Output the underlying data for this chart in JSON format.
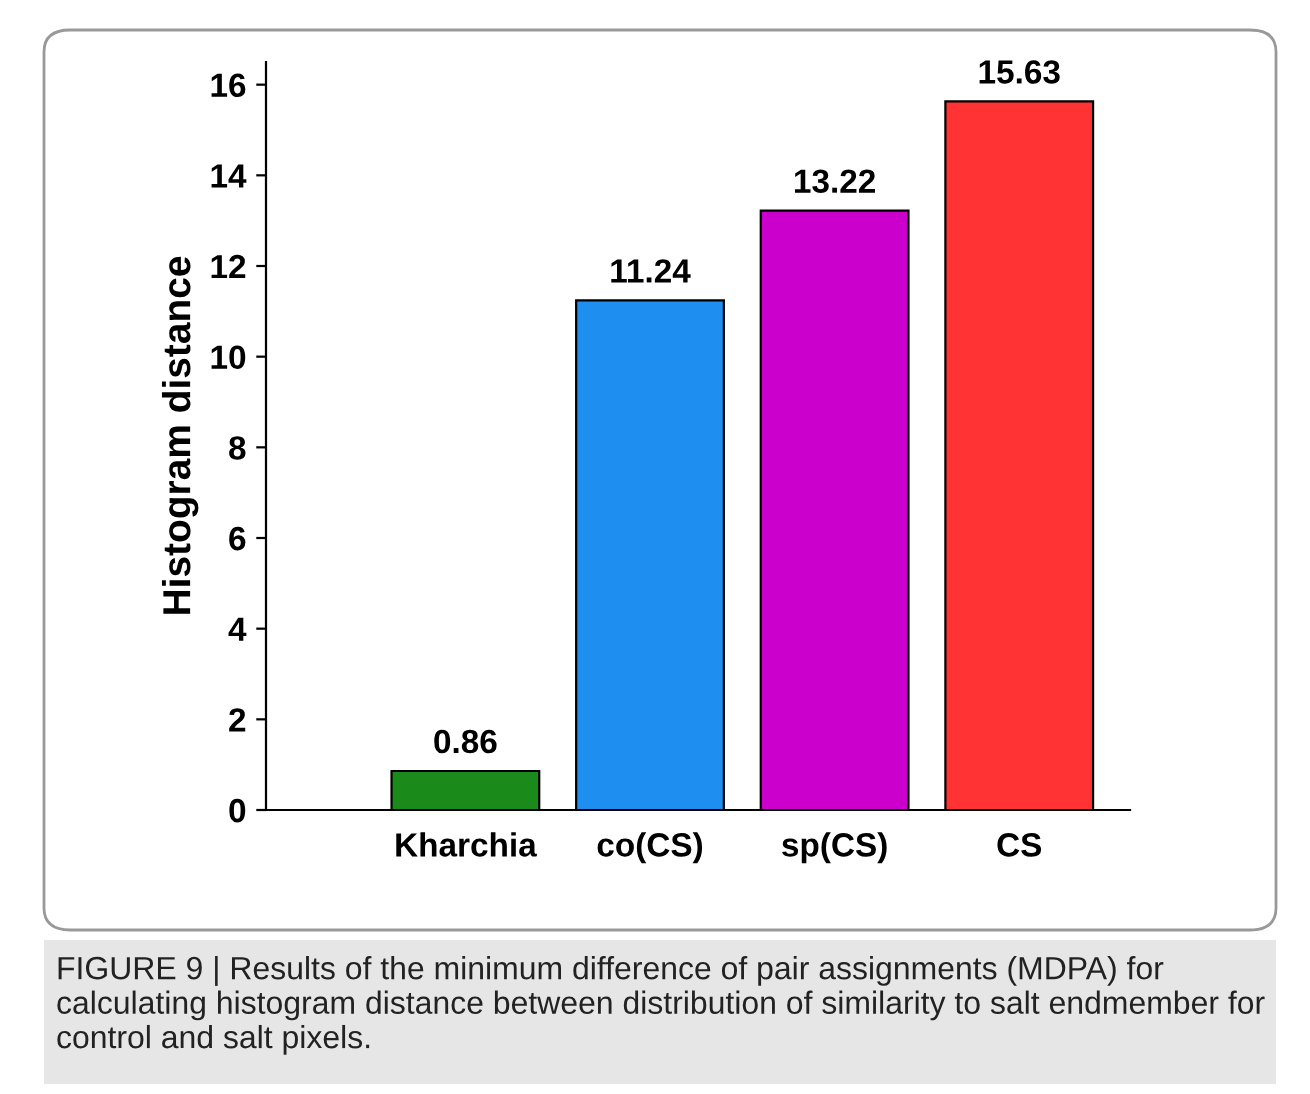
{
  "chart_data": {
    "type": "bar",
    "ylabel": "Histogram distance",
    "categories": [
      "Kharchia",
      "co(CS)",
      "sp(CS)",
      "CS"
    ],
    "values": [
      0.86,
      11.24,
      13.22,
      15.63
    ],
    "colors": [
      "#1a8a1a",
      "#1e8ff0",
      "#cc00cc",
      "#ff3333"
    ],
    "ylim": [
      0,
      16.5
    ],
    "yticks": [
      0,
      2,
      4,
      6,
      8,
      10,
      12,
      14,
      16
    ],
    "data_labels": true,
    "grid": false,
    "annotations": [
      "FIGURE 9 | Results of the minimum difference of pair assignments (MDPA) for calculating histogram distance between distribution of similarity to salt endmember for control and salt pixels."
    ]
  }
}
